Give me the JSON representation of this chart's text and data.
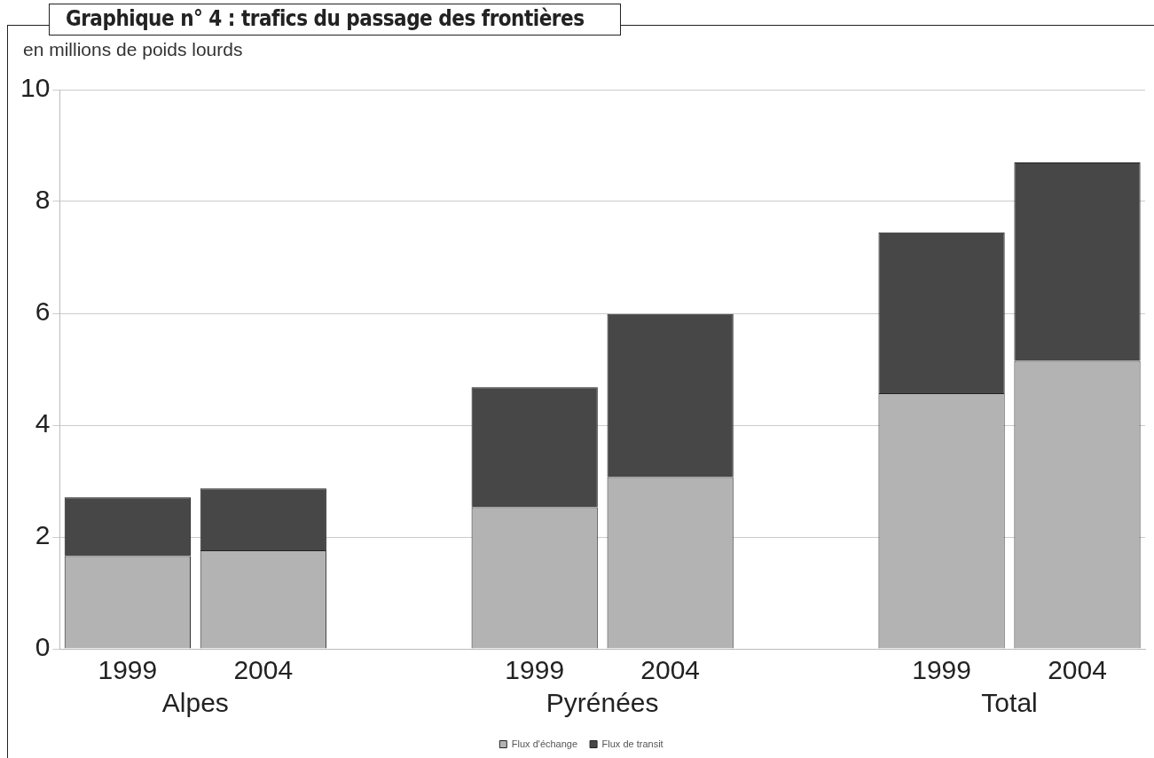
{
  "chart_data": {
    "type": "bar",
    "title": "Graphique n° 4 : trafics du passage des frontières",
    "ylabel": "en millions de poids lourds",
    "categories": [
      "1999",
      "2004",
      null,
      "1999",
      "2004",
      null,
      "1999",
      "2004"
    ],
    "series": [
      {
        "name": "Flux d'échange",
        "color": "#b3b3b3",
        "values": [
          1.66,
          1.76,
          null,
          2.53,
          3.07,
          null,
          4.57,
          5.15
        ]
      },
      {
        "name": "Flux de transit",
        "color": "#474747",
        "values": [
          1.05,
          1.11,
          null,
          2.15,
          2.92,
          null,
          2.88,
          3.55
        ]
      }
    ],
    "stacked": true,
    "ylim": [
      0,
      10
    ],
    "yticks": [
      0,
      2,
      4,
      6,
      8,
      10
    ],
    "grid": "y",
    "legend": "bottom",
    "annotations": [
      "Alpes",
      "Pyrénées",
      "Total"
    ]
  }
}
